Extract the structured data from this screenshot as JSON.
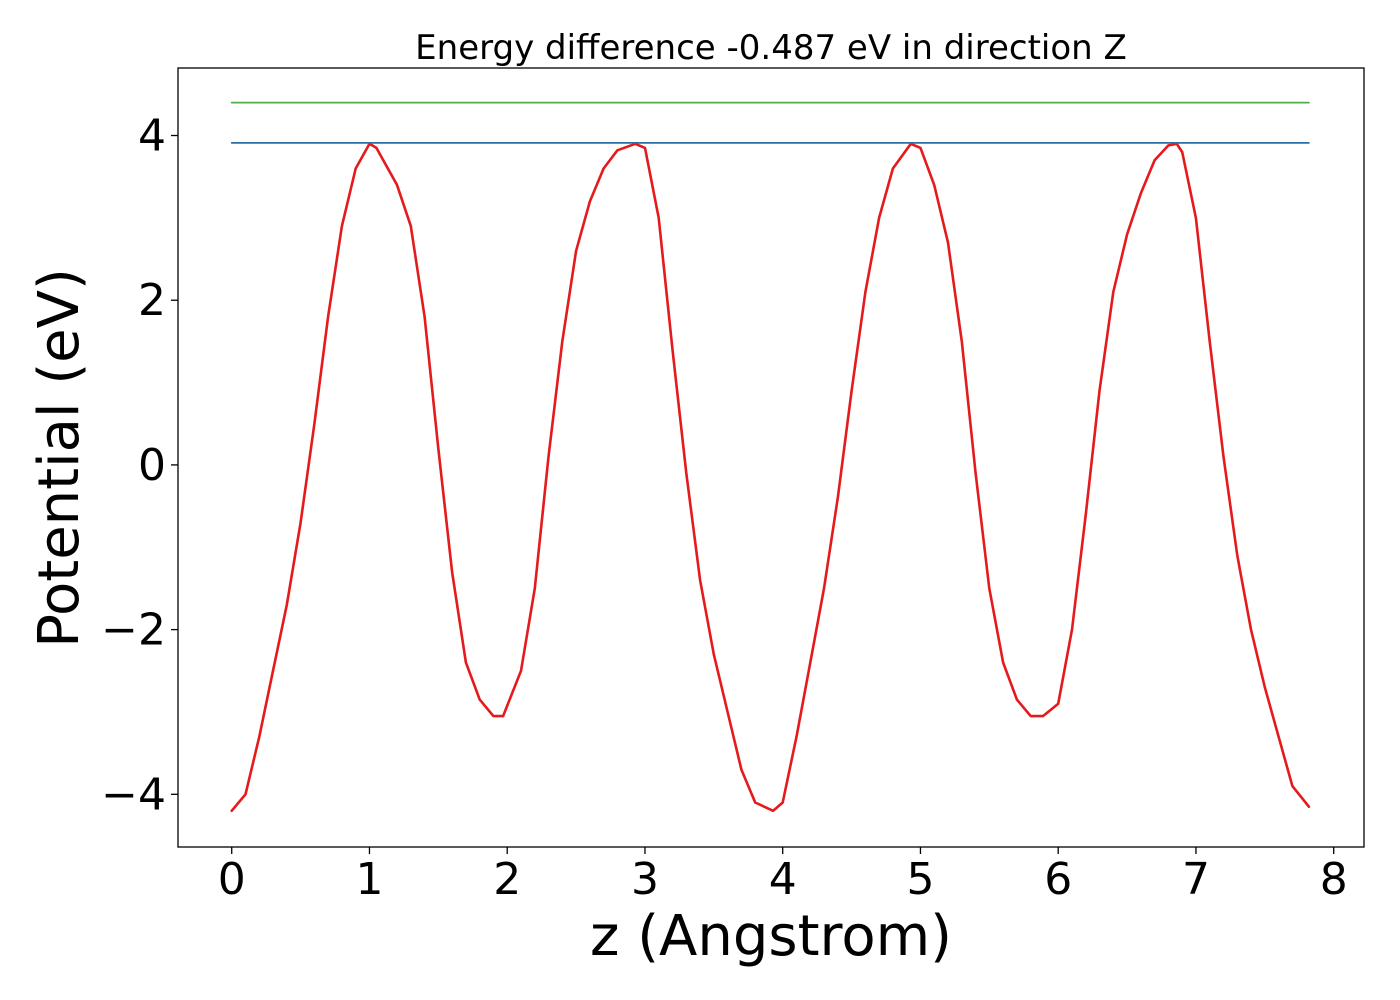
{
  "chart_data": {
    "type": "line",
    "title": "Energy difference -0.487 eV in direction Z",
    "xlabel": "z (Angstrom)",
    "ylabel": "Potential (eV)",
    "xlim": [
      -0.39,
      8.22
    ],
    "ylim": [
      -4.64,
      4.82
    ],
    "x_ticks": [
      0,
      1,
      2,
      3,
      4,
      5,
      6,
      7,
      8
    ],
    "x_tick_labels": [
      "0",
      "1",
      "2",
      "3",
      "4",
      "5",
      "6",
      "7",
      "8"
    ],
    "y_ticks": [
      4,
      2,
      0,
      -2,
      -4
    ],
    "y_tick_labels": [
      "4",
      "2",
      "0",
      "−2",
      "−4"
    ],
    "grid": false,
    "legend": "none",
    "series": [
      {
        "color": "#e41a1c",
        "x": [
          0.0,
          0.1,
          0.2,
          0.3,
          0.4,
          0.5,
          0.6,
          0.7,
          0.8,
          0.9,
          1.0,
          1.05,
          1.2,
          1.3,
          1.4,
          1.5,
          1.6,
          1.7,
          1.8,
          1.9,
          1.97,
          2.1,
          2.2,
          2.3,
          2.4,
          2.5,
          2.6,
          2.7,
          2.8,
          2.93,
          3.0,
          3.1,
          3.2,
          3.3,
          3.4,
          3.5,
          3.6,
          3.7,
          3.8,
          3.93,
          4.0,
          4.1,
          4.2,
          4.3,
          4.4,
          4.5,
          4.6,
          4.7,
          4.8,
          4.93,
          5.0,
          5.1,
          5.2,
          5.3,
          5.4,
          5.5,
          5.6,
          5.7,
          5.8,
          5.89,
          6.0,
          6.1,
          6.2,
          6.3,
          6.4,
          6.5,
          6.6,
          6.7,
          6.8,
          6.86,
          6.9,
          7.0,
          7.1,
          7.2,
          7.3,
          7.4,
          7.5,
          7.6,
          7.7,
          7.82
        ],
        "y": [
          -4.2,
          -4.0,
          -3.3,
          -2.5,
          -1.7,
          -0.7,
          0.5,
          1.8,
          2.9,
          3.6,
          3.9,
          3.85,
          3.4,
          2.9,
          1.8,
          0.2,
          -1.3,
          -2.4,
          -2.85,
          -3.05,
          -3.05,
          -2.5,
          -1.5,
          0.1,
          1.5,
          2.6,
          3.2,
          3.6,
          3.82,
          3.9,
          3.85,
          3.0,
          1.4,
          -0.1,
          -1.4,
          -2.3,
          -3.0,
          -3.7,
          -4.1,
          -4.2,
          -4.1,
          -3.3,
          -2.4,
          -1.5,
          -0.4,
          0.9,
          2.1,
          3.0,
          3.6,
          3.9,
          3.85,
          3.4,
          2.7,
          1.5,
          -0.1,
          -1.5,
          -2.4,
          -2.85,
          -3.05,
          -3.05,
          -2.9,
          -2.0,
          -0.6,
          0.9,
          2.1,
          2.8,
          3.3,
          3.7,
          3.88,
          3.9,
          3.8,
          3.0,
          1.5,
          0.1,
          -1.1,
          -2.0,
          -2.7,
          -3.3,
          -3.9,
          -4.15
        ]
      },
      {
        "color": "#2b6fa8",
        "x": [
          0.0,
          7.82
        ],
        "y": [
          3.91,
          3.91
        ]
      },
      {
        "color": "#4daf4a",
        "x": [
          0.0,
          7.82
        ],
        "y": [
          4.4,
          4.4
        ]
      }
    ]
  }
}
